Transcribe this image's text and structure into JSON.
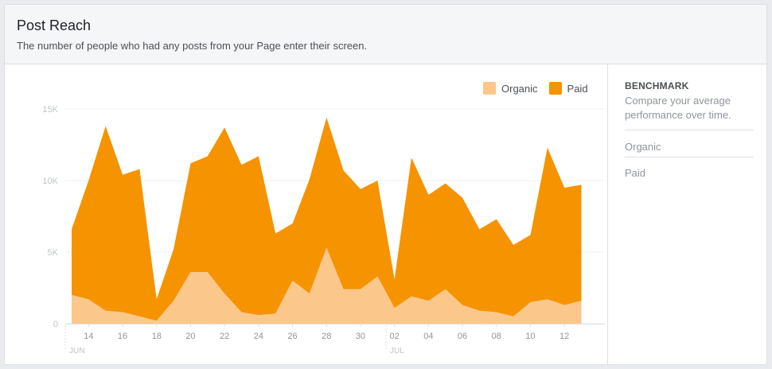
{
  "header": {
    "title": "Post Reach",
    "subtitle": "The number of people who had any posts from your Page enter their screen."
  },
  "side": {
    "heading": "BENCHMARK",
    "description": "Compare your average performance over time.",
    "items": [
      {
        "label": "Organic"
      },
      {
        "label": "Paid"
      }
    ]
  },
  "legend": [
    {
      "label": "Organic",
      "color": "#fcc78b"
    },
    {
      "label": "Paid",
      "color": "#f69300"
    }
  ],
  "chart_data": {
    "type": "area",
    "stacked": true,
    "y_ticks": [
      "0",
      "5K",
      "10K",
      "15K"
    ],
    "y_tick_values": [
      0,
      5000,
      10000,
      15000
    ],
    "ylim": [
      0,
      15000
    ],
    "x_ticks": [
      "14",
      "16",
      "18",
      "20",
      "22",
      "24",
      "26",
      "28",
      "30",
      "02",
      "04",
      "06",
      "08",
      "10",
      "12"
    ],
    "months": [
      "JUN",
      "JUL"
    ],
    "x": [
      "Jun 13",
      "Jun 14",
      "Jun 15",
      "Jun 16",
      "Jun 17",
      "Jun 18",
      "Jun 19",
      "Jun 20",
      "Jun 21",
      "Jun 22",
      "Jun 23",
      "Jun 24",
      "Jun 25",
      "Jun 26",
      "Jun 27",
      "Jun 28",
      "Jun 29",
      "Jun 30",
      "Jul 01",
      "Jul 02",
      "Jul 03",
      "Jul 04",
      "Jul 05",
      "Jul 06",
      "Jul 07",
      "Jul 08",
      "Jul 09",
      "Jul 10",
      "Jul 11",
      "Jul 12",
      "Jul 13"
    ],
    "series": [
      {
        "name": "Organic",
        "color": "#fcc78b",
        "values": [
          2000,
          1700,
          900,
          800,
          500,
          200,
          1600,
          3600,
          3600,
          2100,
          800,
          600,
          700,
          3000,
          2100,
          5300,
          2400,
          2400,
          3300,
          1100,
          1900,
          1600,
          2400,
          1300,
          900,
          800,
          500,
          1500,
          1700,
          1300,
          1600
        ]
      },
      {
        "name": "Paid",
        "color": "#f69300",
        "values": [
          4600,
          8300,
          12900,
          9600,
          10300,
          1500,
          3600,
          7600,
          8100,
          11600,
          10300,
          11100,
          5600,
          4000,
          8000,
          9100,
          8300,
          7000,
          6700,
          2000,
          9700,
          7400,
          7400,
          7500,
          5700,
          6500,
          5000,
          4700,
          10600,
          8200,
          8100
        ]
      }
    ]
  }
}
